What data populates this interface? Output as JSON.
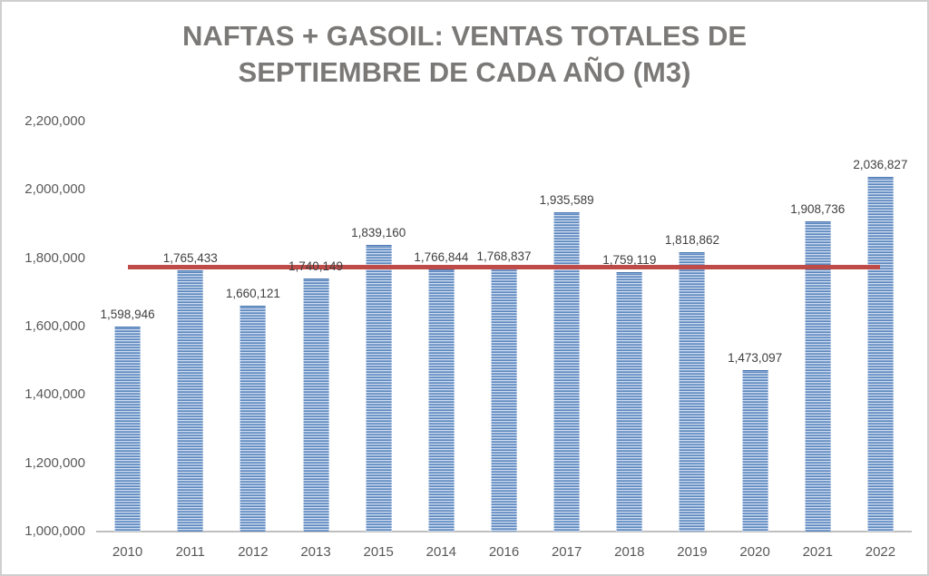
{
  "window": {
    "background_color": "#ffffff",
    "border_color": "#cfcfcf"
  },
  "chart_data": {
    "type": "bar",
    "title": "NAFTAS + GASOIL: VENTAS TOTALES DE SEPTIEMBRE DE CADA AÑO (M3)",
    "title_color": "#7b7977",
    "categories": [
      "2010",
      "2011",
      "2012",
      "2013",
      "2015",
      "2014",
      "2016",
      "2017",
      "2018",
      "2019",
      "2020",
      "2021",
      "2022"
    ],
    "values": [
      1598946,
      1765433,
      1660121,
      1740149,
      1839160,
      1766844,
      1768837,
      1935589,
      1759119,
      1818862,
      1473097,
      1908736,
      2036827
    ],
    "data_labels": [
      "1,598,946",
      "1,765,433",
      "1,660,121",
      "1,740,149",
      "1,839,160",
      "1,766,844",
      "1,768,837",
      "1,935,589",
      "1,759,119",
      "1,818,862",
      "1,473,097",
      "1,908,736",
      "2,036,827"
    ],
    "xlabel": "",
    "ylabel": "",
    "ylim": [
      1000000,
      2200000
    ],
    "y_ticks": [
      {
        "value": 2200000,
        "label": "2,200,000"
      },
      {
        "value": 2000000,
        "label": "2,000,000"
      },
      {
        "value": 1800000,
        "label": "1,800,000"
      },
      {
        "value": 1600000,
        "label": "1,600,000"
      },
      {
        "value": 1400000,
        "label": "1,400,000"
      },
      {
        "value": 1200000,
        "label": "1,200,000"
      },
      {
        "value": 1000000,
        "label": "1,000,000"
      }
    ],
    "grid": false,
    "legend": "none",
    "bar_color": "#6f96c8",
    "bar_stripe_light": "#cfdcee",
    "bar_stripe_dark": "#5c86bd",
    "axis_line_color": "#bfbfbf",
    "axis_label_color": "#595959",
    "data_label_color": "#3f3f3f",
    "reference_line": {
      "type": "average",
      "value": 1774748,
      "color": "#be4b48",
      "note": "estimated from line position; equals mean of series"
    }
  }
}
